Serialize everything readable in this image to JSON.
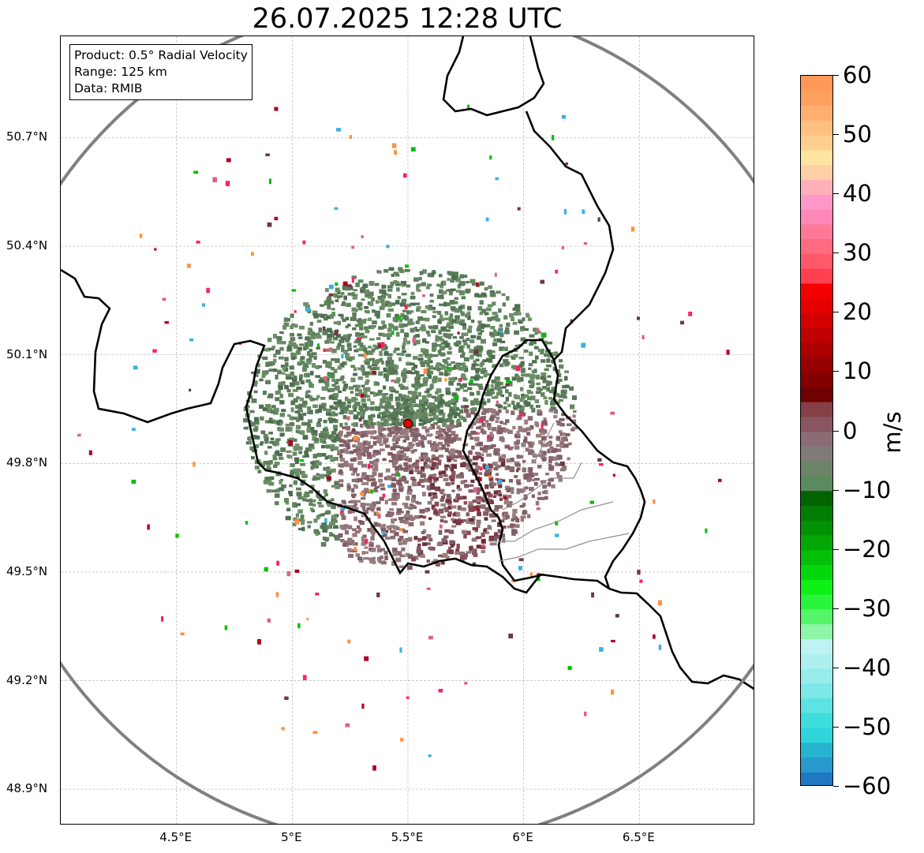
{
  "title": "26.07.2025 12:28 UTC",
  "info_box": {
    "line1": "Product: 0.5° Radial Velocity",
    "line2": "Range: 125 km",
    "line3": "Data: RMIB"
  },
  "map": {
    "lon_range": [
      4.0,
      7.0
    ],
    "lat_range": [
      48.8,
      50.98
    ],
    "gridlines": true,
    "lat_ticks": [
      {
        "value": 50.7,
        "label": "50.7°N"
      },
      {
        "value": 50.4,
        "label": "50.4°N"
      },
      {
        "value": 50.1,
        "label": "50.1°N"
      },
      {
        "value": 49.8,
        "label": "49.8°N"
      },
      {
        "value": 49.5,
        "label": "49.5°N"
      },
      {
        "value": 49.2,
        "label": "49.2°N"
      },
      {
        "value": 48.9,
        "label": "48.9°N"
      }
    ],
    "lon_ticks": [
      {
        "value": 4.5,
        "label": "4.5°E"
      },
      {
        "value": 5.0,
        "label": "5°E"
      },
      {
        "value": 5.5,
        "label": "5.5°E"
      },
      {
        "value": 6.0,
        "label": "6°E"
      },
      {
        "value": 6.5,
        "label": "6.5°E"
      }
    ],
    "radar_site": {
      "lon": 5.5,
      "lat": 49.91,
      "color": "#e00000"
    },
    "range_ring_color": "#808080",
    "border_color": "#000000",
    "admin_border_color": "#909090"
  },
  "colorbar": {
    "label": "m/s",
    "min": -60,
    "max": 60,
    "ticks": [
      {
        "value": 60,
        "label": "60"
      },
      {
        "value": 50,
        "label": "50"
      },
      {
        "value": 40,
        "label": "40"
      },
      {
        "value": 30,
        "label": "30"
      },
      {
        "value": 20,
        "label": "20"
      },
      {
        "value": 10,
        "label": "10"
      },
      {
        "value": 0,
        "label": "0"
      },
      {
        "value": -10,
        "label": "−10"
      },
      {
        "value": -20,
        "label": "−20"
      },
      {
        "value": -30,
        "label": "−30"
      },
      {
        "value": -40,
        "label": "−40"
      },
      {
        "value": -50,
        "label": "−50"
      },
      {
        "value": -60,
        "label": "−60"
      }
    ],
    "colors": [
      "#1f78c1",
      "#2799cc",
      "#26b3d0",
      "#2ed6db",
      "#3fdcdc",
      "#5ee2e2",
      "#7ee8e8",
      "#98ecec",
      "#aef0f0",
      "#bff2f2",
      "#8ff5a8",
      "#55f56a",
      "#2af53d",
      "#0ef016",
      "#05d80a",
      "#04c008",
      "#03a806",
      "#029004",
      "#017d02",
      "#016401",
      "#5a8a5e",
      "#6b8468",
      "#7f7b78",
      "#8a6c74",
      "#885560",
      "#844046",
      "#6e0000",
      "#820000",
      "#960000",
      "#aa0000",
      "#be0000",
      "#d20000",
      "#e60000",
      "#f50000",
      "#ff4050",
      "#ff5868",
      "#ff6b80",
      "#ff7898",
      "#ff88b8",
      "#ff98c8",
      "#ffb0b8",
      "#ffd0a8",
      "#ffe5a0",
      "#ffcf90",
      "#ffc080",
      "#ffb070",
      "#ffa060",
      "#ff9858"
    ]
  }
}
